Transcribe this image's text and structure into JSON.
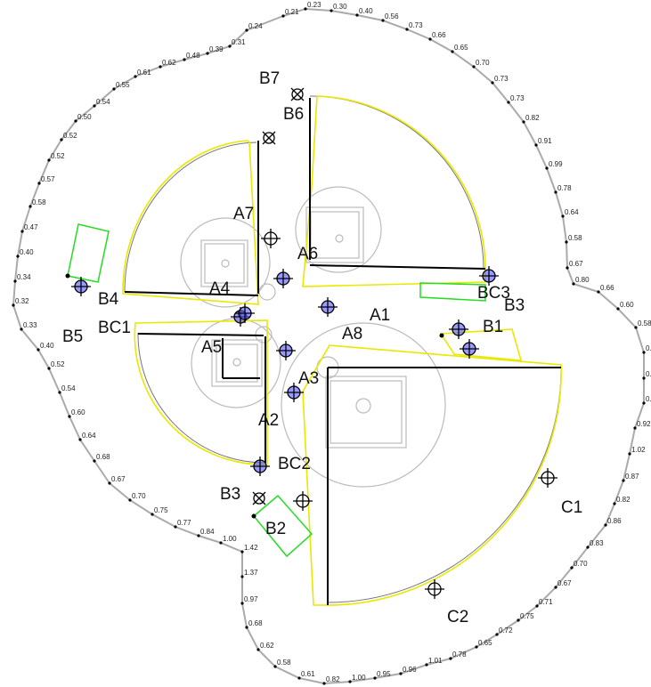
{
  "boundary_labels": [
    "0.21",
    "0.23",
    "0.30",
    "0.40",
    "0.56",
    "0.73",
    "0.66",
    "0.65",
    "0.70",
    "0.73",
    "0.73",
    "0.82",
    "0.91",
    "0.99",
    "0.78",
    "0.64",
    "0.58",
    "0.67",
    "0.80",
    "0.66",
    "0.60",
    "0.58",
    "0.7",
    "0.8",
    "0.8",
    "0.92",
    "1.02",
    "0.87",
    "0.82",
    "0.86",
    "0.83",
    "0.70",
    "0.67",
    "0.71",
    "0.75",
    "0.72",
    "0.65",
    "0.78",
    "1.01",
    "0.96",
    "0.95",
    "1.00",
    "0.82",
    "0.61",
    "0.58",
    "0.62",
    "0.68",
    "0.97",
    "1.37",
    "1.42",
    "1.00",
    "0.84",
    "0.77",
    "0.75",
    "0.70",
    "0.67",
    "0.68",
    "0.64",
    "0.60",
    "0.54",
    "0.52",
    "0.40",
    "0.33",
    "0.32",
    "0.34",
    "0.40",
    "0.47",
    "0.58",
    "0.57",
    "0.52",
    "0.52",
    "0.50",
    "0.54",
    "0.55",
    "0.61",
    "0.62",
    "0.48",
    "0.39",
    "0.31",
    "0.24"
  ],
  "labels": [
    "A1",
    "A2",
    "A3",
    "A4",
    "A5",
    "A6",
    "A7",
    "A8",
    "B1",
    "B2",
    "B3",
    "B4",
    "B5",
    "B6",
    "B7",
    "BC1",
    "BC2",
    "BC3",
    "B3",
    "C1",
    "C2"
  ]
}
